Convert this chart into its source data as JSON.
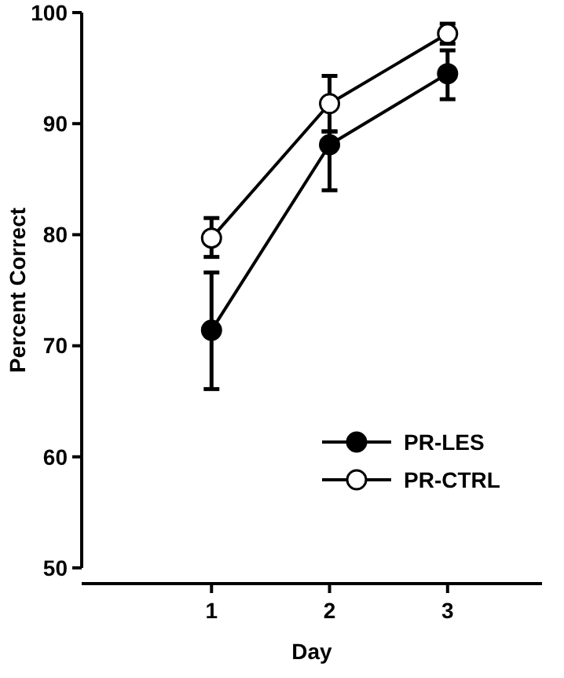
{
  "chart_data": {
    "type": "line",
    "xlabel": "Day",
    "ylabel": "Percent Correct",
    "x": [
      1,
      2,
      3
    ],
    "series": [
      {
        "name": "PR-LES",
        "color": "#000000",
        "values": [
          71.4,
          88.1,
          94.5
        ],
        "errors": [
          [
            66.1,
            76.6
          ],
          [
            84.0,
            89.3
          ],
          [
            92.2,
            96.6
          ]
        ]
      },
      {
        "name": "PR-CTRL",
        "color": "#000000",
        "values": [
          79.7,
          91.8,
          98.1
        ],
        "errors": [
          [
            78.0,
            81.5
          ],
          [
            89.3,
            94.3
          ],
          [
            97.2,
            99.0
          ]
        ]
      }
    ],
    "xlim": [
      -0.1,
      3.8
    ],
    "xticks": [
      1,
      2,
      3
    ],
    "ylim": [
      50,
      100
    ],
    "yticks": [
      50,
      60,
      70,
      80,
      90,
      100
    ],
    "legend": "bottom right",
    "marker": "circle",
    "line_style": "solid",
    "grid": false
  }
}
